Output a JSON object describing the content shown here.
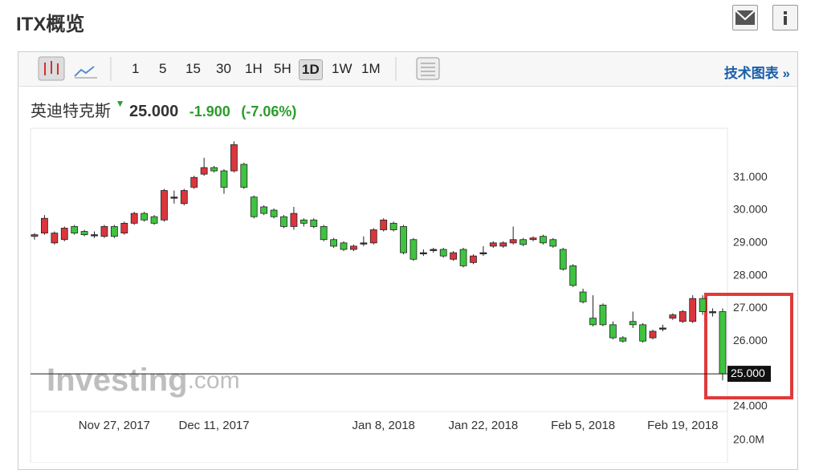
{
  "header": {
    "title": "ITX概览"
  },
  "toolbar": {
    "intervals": [
      "1",
      "5",
      "15",
      "30",
      "1H",
      "5H",
      "1D",
      "1W",
      "1M"
    ],
    "active": "1D",
    "link": "技术图表 »"
  },
  "quote": {
    "name": "英迪特克斯",
    "price": "25.000",
    "change": "-1.900",
    "change_pct": "(-7.06%)"
  },
  "chart_data": {
    "type": "candlestick",
    "categories": [
      null,
      null,
      null,
      null,
      null,
      null,
      null,
      null,
      "Nov 27, 2017",
      null,
      null,
      null,
      null,
      null,
      null,
      null,
      null,
      null,
      "Dec 11, 2017",
      null,
      null,
      null,
      null,
      null,
      null,
      null,
      null,
      null,
      null,
      null,
      null,
      null,
      null,
      null,
      null,
      "Jan 8, 2018",
      null,
      null,
      null,
      null,
      null,
      null,
      null,
      null,
      null,
      "Jan 22, 2018",
      null,
      null,
      null,
      null,
      null,
      null,
      null,
      null,
      null,
      "Feb 5, 2018",
      null,
      null,
      null,
      null,
      null,
      null,
      null,
      null,
      null,
      "Feb 19, 2018",
      null,
      null,
      null,
      null
    ],
    "open": [
      29.2,
      29.3,
      29.0,
      29.1,
      29.5,
      29.35,
      29.25,
      29.2,
      29.5,
      29.3,
      29.6,
      29.9,
      29.8,
      29.7,
      30.4,
      30.2,
      30.7,
      31.1,
      31.3,
      31.2,
      31.2,
      31.4,
      30.4,
      30.1,
      30.0,
      29.8,
      29.5,
      29.7,
      29.7,
      29.5,
      29.1,
      29.0,
      28.8,
      29.0,
      29.0,
      29.4,
      29.6,
      29.5,
      29.1,
      28.7,
      28.8,
      28.8,
      28.5,
      28.8,
      28.4,
      28.7,
      28.9,
      28.9,
      29.0,
      29.1,
      29.1,
      29.2,
      29.1,
      28.8,
      28.3,
      27.5,
      26.7,
      27.1,
      26.5,
      26.1,
      26.6,
      26.5,
      26.1,
      26.4,
      26.7,
      26.6,
      26.6,
      27.3,
      26.9,
      26.9
    ],
    "high": [
      29.3,
      29.85,
      29.35,
      29.5,
      29.55,
      29.4,
      29.35,
      29.55,
      29.55,
      29.65,
      29.95,
      29.95,
      29.85,
      30.65,
      30.6,
      30.65,
      31.05,
      31.6,
      31.35,
      31.25,
      32.1,
      31.45,
      30.45,
      30.15,
      30.05,
      29.85,
      30.1,
      29.75,
      29.75,
      29.55,
      29.15,
      29.05,
      28.95,
      29.2,
      29.45,
      29.75,
      29.65,
      29.55,
      29.15,
      28.8,
      28.85,
      28.85,
      28.75,
      28.85,
      28.65,
      28.9,
      29.05,
      29.05,
      29.5,
      29.15,
      29.2,
      29.25,
      29.15,
      28.85,
      28.35,
      27.6,
      27.4,
      27.15,
      26.6,
      26.15,
      26.9,
      26.55,
      26.35,
      26.5,
      26.85,
      26.95,
      27.4,
      27.4,
      27.0,
      27.0
    ],
    "low": [
      29.1,
      29.25,
      28.95,
      29.05,
      29.25,
      29.2,
      29.15,
      29.15,
      29.15,
      29.25,
      29.55,
      29.65,
      29.55,
      29.65,
      30.2,
      30.15,
      30.65,
      31.05,
      31.15,
      30.5,
      31.15,
      30.65,
      29.75,
      29.85,
      29.75,
      29.45,
      29.4,
      29.5,
      29.45,
      29.05,
      28.85,
      28.75,
      28.75,
      28.9,
      28.95,
      29.35,
      29.35,
      28.65,
      28.45,
      28.6,
      28.7,
      28.55,
      28.45,
      28.25,
      28.35,
      28.6,
      28.85,
      28.85,
      28.95,
      28.9,
      29.05,
      28.95,
      28.85,
      28.15,
      27.65,
      27.15,
      26.45,
      26.45,
      26.05,
      25.95,
      26.4,
      25.95,
      26.05,
      26.3,
      26.65,
      26.55,
      26.55,
      26.8,
      26.75,
      24.8
    ],
    "close": [
      29.25,
      29.75,
      29.3,
      29.45,
      29.3,
      29.25,
      29.25,
      29.5,
      29.2,
      29.6,
      29.9,
      29.7,
      29.6,
      30.6,
      30.4,
      30.6,
      31.0,
      31.3,
      31.2,
      30.7,
      32.0,
      30.7,
      29.8,
      29.9,
      29.8,
      29.5,
      29.9,
      29.6,
      29.5,
      29.1,
      28.9,
      28.8,
      28.9,
      29.0,
      29.4,
      29.7,
      29.4,
      28.7,
      28.5,
      28.7,
      28.8,
      28.6,
      28.7,
      28.3,
      28.6,
      28.7,
      29.0,
      29.0,
      29.1,
      28.95,
      29.15,
      29.0,
      28.9,
      28.2,
      27.7,
      27.2,
      26.5,
      26.5,
      26.1,
      26.0,
      26.5,
      26.0,
      26.3,
      26.4,
      26.8,
      26.9,
      27.3,
      26.9,
      26.9,
      25.0
    ],
    "up_color": "#d9363e",
    "down_color": "#3fc43f",
    "flat_color": "#333333",
    "ylim": [
      23.85,
      32.5
    ],
    "yticks": [
      {
        "value": 24,
        "label": "24.000"
      },
      {
        "value": 25,
        "label": "25.000"
      },
      {
        "value": 26,
        "label": "26.000"
      },
      {
        "value": 27,
        "label": "27.000"
      },
      {
        "value": 28,
        "label": "28.000"
      },
      {
        "value": 29,
        "label": "29.000"
      },
      {
        "value": 30,
        "label": "30.000"
      },
      {
        "value": 31,
        "label": "31.000"
      }
    ],
    "y2lim": [
      0,
      20000000
    ],
    "y2ticks": [
      {
        "value": 20000000,
        "label": "20.0M"
      }
    ],
    "last_price": {
      "value": 25,
      "label": "25.000"
    },
    "watermark": [
      "Investing",
      ".com"
    ]
  }
}
